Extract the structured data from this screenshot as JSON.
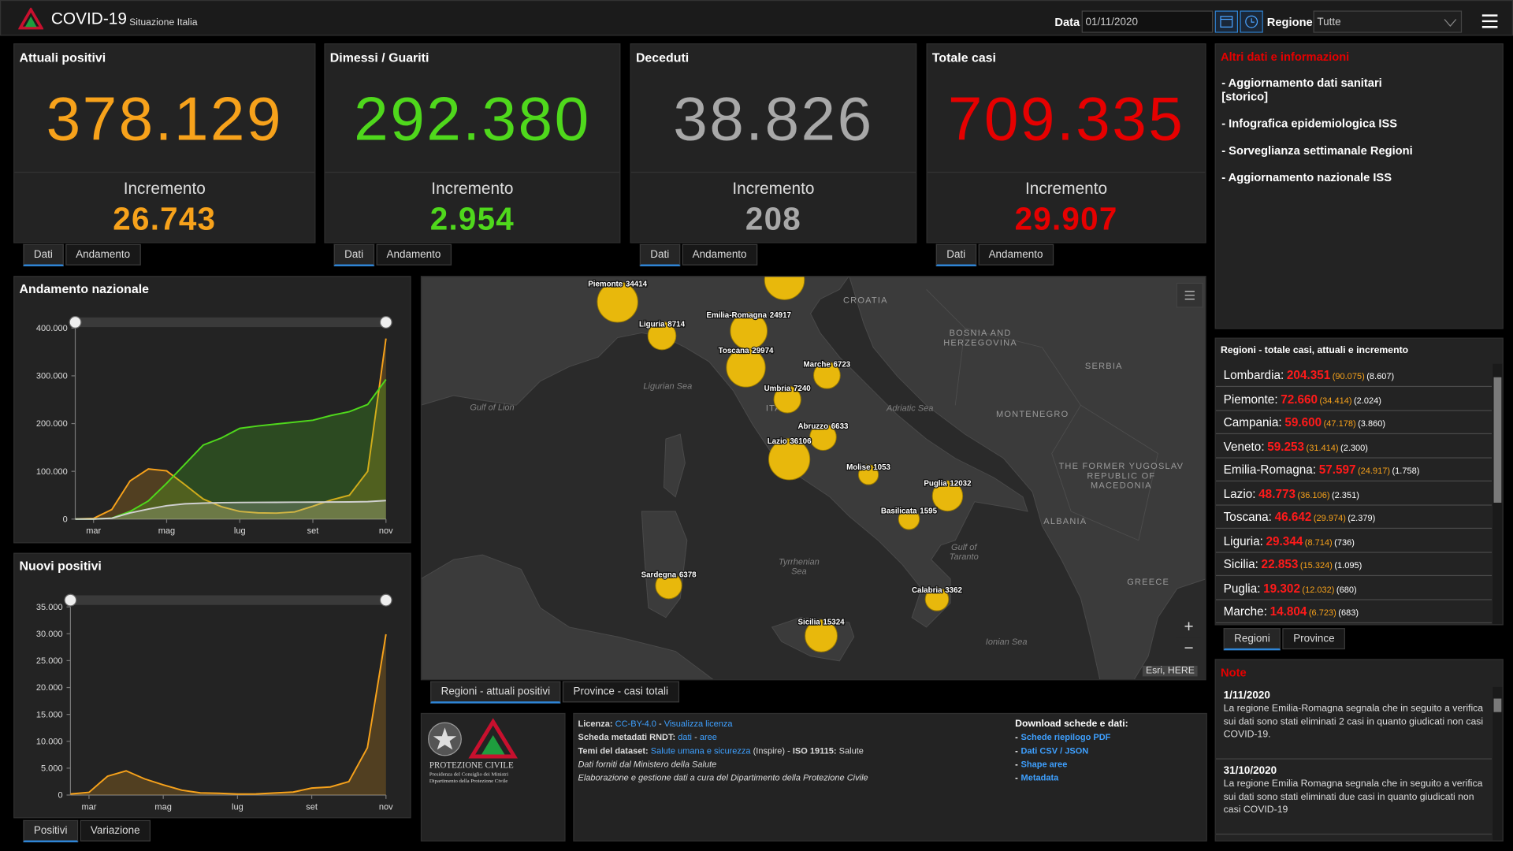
{
  "header": {
    "title": "COVID-19",
    "subtitle": "Situazione Italia",
    "date_label": "Data",
    "date_value": "01/11/2020",
    "region_label": "Regione",
    "region_value": "Tutte"
  },
  "cards": [
    {
      "title": "Attuali positivi",
      "value": "378.129",
      "increment_label": "Incremento",
      "increment": "26.743",
      "color": "#f7a21b",
      "tabs": [
        "Dati",
        "Andamento"
      ]
    },
    {
      "title": "Dimessi / Guariti",
      "value": "292.380",
      "increment_label": "Incremento",
      "increment": "2.954",
      "color": "#4fd81c",
      "tabs": [
        "Dati",
        "Andamento"
      ]
    },
    {
      "title": "Deceduti",
      "value": "38.826",
      "increment_label": "Incremento",
      "increment": "208",
      "color": "#a8a8a8",
      "tabs": [
        "Dati",
        "Andamento"
      ]
    },
    {
      "title": "Totale casi",
      "value": "709.335",
      "increment_label": "Incremento",
      "increment": "29.907",
      "color": "#e60000",
      "tabs": [
        "Dati",
        "Andamento"
      ]
    }
  ],
  "info": {
    "title": "Altri dati e informazioni",
    "links": [
      "- Aggiornamento dati sanitari\n  [storico]",
      "- Infografica epidemiologica ISS",
      "- Sorveglianza settimanale Regioni",
      "- Aggiornamento nazionale ISS"
    ]
  },
  "chart_data": [
    {
      "type": "line",
      "title": "Andamento nazionale",
      "categories": [
        null,
        "mar",
        null,
        null,
        null,
        "mag",
        null,
        null,
        null,
        "lug",
        null,
        null,
        null,
        "set",
        null,
        null,
        null,
        "nov"
      ],
      "series": [
        {
          "color": "#f7a21b",
          "values": [
            200,
            1500,
            20000,
            80000,
            105000,
            101000,
            72000,
            42000,
            26000,
            16000,
            13000,
            12500,
            15000,
            27000,
            40000,
            50000,
            100000,
            378129
          ]
        },
        {
          "color": "#4fd81c",
          "values": [
            0,
            50,
            2000,
            16000,
            38000,
            75000,
            115000,
            155000,
            170000,
            190000,
            195000,
            199000,
            203000,
            207000,
            217000,
            225000,
            240000,
            292380
          ]
        },
        {
          "color": "#d0d0d0",
          "values": [
            7,
            30,
            1800,
            13000,
            21000,
            28000,
            32000,
            33500,
            34400,
            34800,
            35000,
            35150,
            35400,
            35500,
            35700,
            35900,
            36500,
            38826
          ]
        }
      ],
      "ylim": [
        0,
        400000
      ],
      "yticks": [
        0,
        {
          "value": 100000,
          "label": "100.000"
        },
        {
          "value": 200000,
          "label": "200.000"
        },
        {
          "value": 300000,
          "label": "300.000"
        },
        {
          "value": 400000,
          "label": "400.000"
        }
      ]
    },
    {
      "type": "line",
      "title": "Nuovi positivi",
      "categories": [
        null,
        "mar",
        null,
        null,
        null,
        "mag",
        null,
        null,
        null,
        "lug",
        null,
        null,
        null,
        "set",
        null,
        null,
        null,
        "nov"
      ],
      "series": [
        {
          "color": "#f7a21b",
          "values": [
            200,
            500,
            3500,
            4500,
            3000,
            1900,
            900,
            400,
            330,
            180,
            200,
            380,
            550,
            1300,
            1500,
            2500,
            8800,
            29907
          ]
        }
      ],
      "ylim": [
        0,
        35000
      ],
      "yticks": [
        0,
        {
          "value": 5000,
          "label": "5.000"
        },
        {
          "value": 10000,
          "label": "10.000"
        },
        {
          "value": 15000,
          "label": "15.000"
        },
        {
          "value": 20000,
          "label": "20.000"
        },
        {
          "value": 25000,
          "label": "25.000"
        },
        {
          "value": 30000,
          "label": "30.000"
        },
        {
          "value": 35000,
          "label": "35.000"
        }
      ],
      "tabs": [
        "Positivi",
        "Variazione"
      ]
    }
  ],
  "map": {
    "bubbles": [
      {
        "name": null,
        "value": 90075
      },
      {
        "name": "Piemonte",
        "value": 34414
      },
      {
        "name": "Liguria",
        "value": 8714
      },
      {
        "name": "Emilia-Romagna",
        "value": 24917
      },
      {
        "name": "Toscana",
        "value": 29974
      },
      {
        "name": "Marche",
        "value": 6723
      },
      {
        "name": "Umbria",
        "value": 7240
      },
      {
        "name": "Abruzzo",
        "value": 6633
      },
      {
        "name": "Lazio",
        "value": 36106
      },
      {
        "name": "Molise",
        "value": 1053
      },
      {
        "name": "Puglia",
        "value": 12032
      },
      {
        "name": "Basilicata",
        "value": 1595
      },
      {
        "name": "Sardegna",
        "value": 6378
      },
      {
        "name": "Calabria",
        "value": 3362
      },
      {
        "name": "Sicilia",
        "value": 15324
      }
    ],
    "color": "#e8b80c",
    "labels": [
      [
        "CROATIA"
      ],
      [
        "BOSNIA AND",
        "HERZEGOVINA"
      ],
      [
        "SERBIA"
      ],
      [
        "Ligurian Sea"
      ],
      [
        "Gulf of Lion"
      ],
      [
        "Adriatic Sea"
      ],
      [
        "MONTENEGRO"
      ],
      [
        "THE FORMER YUGOSLAV",
        "REPUBLIC OF",
        "MACEDONIA"
      ],
      [
        "ALBANIA"
      ],
      [
        "Tyrrhenian",
        "Sea"
      ],
      [
        "Gulf of",
        "Taranto"
      ],
      [
        "GREECE"
      ],
      [
        "Ionian Sea"
      ],
      [
        "ITALY"
      ]
    ],
    "attribution": "Esri, HERE",
    "zoom": [
      "+",
      "−"
    ],
    "tabs": [
      "Regioni - attuali positivi",
      "Province - casi totali"
    ]
  },
  "regions": {
    "title": "Regioni - totale casi, attuali e incremento",
    "rows": [
      {
        "name": "Lombardia:",
        "total": "204.351",
        "active": "(90.075)",
        "increment": "(8.607)"
      },
      {
        "name": "Piemonte:",
        "total": "72.660",
        "active": "(34.414)",
        "increment": "(2.024)"
      },
      {
        "name": "Campania:",
        "total": "59.600",
        "active": "(47.178)",
        "increment": "(3.860)"
      },
      {
        "name": "Veneto:",
        "total": "59.253",
        "active": "(31.414)",
        "increment": "(2.300)"
      },
      {
        "name": "Emilia-Romagna:",
        "total": "57.597",
        "active": "(24.917)",
        "increment": "(1.758)"
      },
      {
        "name": "Lazio:",
        "total": "48.773",
        "active": "(36.106)",
        "increment": "(2.351)"
      },
      {
        "name": "Toscana:",
        "total": "46.642",
        "active": "(29.974)",
        "increment": "(2.379)"
      },
      {
        "name": "Liguria:",
        "total": "29.344",
        "active": "(8.714)",
        "increment": "(736)"
      },
      {
        "name": "Sicilia:",
        "total": "22.853",
        "active": "(15.324)",
        "increment": "(1.095)"
      },
      {
        "name": "Puglia:",
        "total": "19.302",
        "active": "(12.032)",
        "increment": "(680)"
      },
      {
        "name": "Marche:",
        "total": "14.804",
        "active": "(6.723)",
        "increment": "(683)"
      }
    ],
    "tabs": [
      "Regioni",
      "Province"
    ]
  },
  "notes": {
    "title": "Note",
    "items": [
      {
        "date": "1/11/2020",
        "text": "La regione Emilia-Romagna segnala che in seguito a verifica sui dati sono stati eliminati 2 casi in quanto giudicati non casi COVID-19."
      },
      {
        "date": "31/10/2020",
        "text": "La regione Emilia Romagna segnala che in seguito a verifica sui dati sono stati eliminati due casi in quanto giudicati non casi COVID-19"
      }
    ]
  },
  "footer": {
    "logo": [
      "PROTEZIONE CIVILE",
      "Presidenza del Consiglio dei Ministri",
      "Dipartimento della Protezione Civile"
    ],
    "license": [
      [
        {
          "text": "Licenza: ",
          "style": "b"
        },
        {
          "text": "CC-BY-4.0",
          "style": "link"
        },
        {
          "text": " - ",
          "style": ""
        },
        {
          "text": "Visualizza licenza",
          "style": "link"
        }
      ],
      [
        {
          "text": "Scheda metadati RNDT: ",
          "style": "b"
        },
        {
          "text": "dati",
          "style": "link"
        },
        {
          "text": " - ",
          "style": ""
        },
        {
          "text": "aree",
          "style": "link"
        }
      ],
      [
        {
          "text": "Temi del dataset: ",
          "style": "b"
        },
        {
          "text": "Salute umana e sicurezza",
          "style": "link"
        },
        {
          "text": " (Inspire) - ",
          "style": ""
        },
        {
          "text": "ISO 19115:",
          "style": "b"
        },
        {
          "text": " Salute",
          "style": ""
        }
      ],
      [
        {
          "text": "Dati forniti dal Ministero della Salute",
          "style": "i"
        }
      ],
      [
        {
          "text": "Elaborazione e gestione dati a cura del Dipartimento della Protezione Civile",
          "style": "i"
        }
      ]
    ],
    "download_title": "Download schede e dati:",
    "bullet": "-",
    "downloads": [
      "Schede riepilogo PDF",
      "Dati CSV / JSON",
      "Shape aree",
      "Metadata"
    ]
  }
}
